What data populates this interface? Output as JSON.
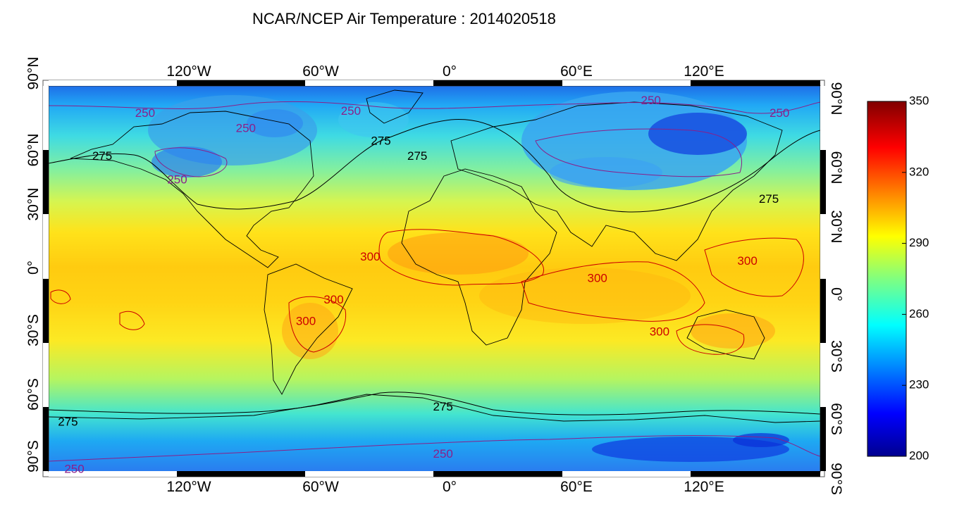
{
  "title": "NCAR/NCEP Air Temperature : 2014020518",
  "lon_labels": [
    "120°W",
    "60°W",
    "0°",
    "60°E",
    "120°E"
  ],
  "lat_labels_left": [
    "90°N",
    "60°N",
    "30°N",
    "0°",
    "30°S",
    "60°S",
    "90°S"
  ],
  "lat_labels_right": [
    "90°N",
    "60°N",
    "30°N",
    "0°",
    "30°S",
    "60°S",
    "90°S"
  ],
  "colorbar": {
    "min": 200,
    "max": 350,
    "labels": [
      "350",
      "320",
      "290",
      "260",
      "230",
      "200"
    ]
  },
  "contour_labels": [
    {
      "text": "250",
      "color": "#8a1f8a",
      "lon": -135,
      "lat": 77
    },
    {
      "text": "250",
      "color": "#8a1f8a",
      "lon": -88,
      "lat": 70
    },
    {
      "text": "250",
      "color": "#8a1f8a",
      "lon": -39,
      "lat": 78
    },
    {
      "text": "250",
      "color": "#8a1f8a",
      "lon": 101,
      "lat": 83
    },
    {
      "text": "250",
      "color": "#8a1f8a",
      "lon": 161,
      "lat": 77
    },
    {
      "text": "250",
      "color": "#8a1f8a",
      "lon": -120,
      "lat": 46
    },
    {
      "text": "275",
      "color": "#000000",
      "lon": -155,
      "lat": 57
    },
    {
      "text": "275",
      "color": "#000000",
      "lon": -25,
      "lat": 64
    },
    {
      "text": "275",
      "color": "#000000",
      "lon": -8,
      "lat": 57
    },
    {
      "text": "275",
      "color": "#000000",
      "lon": 156,
      "lat": 37
    },
    {
      "text": "300",
      "color": "#cc0000",
      "lon": -30,
      "lat": 10
    },
    {
      "text": "300",
      "color": "#cc0000",
      "lon": -47,
      "lat": -10
    },
    {
      "text": "300",
      "color": "#cc0000",
      "lon": -60,
      "lat": -20
    },
    {
      "text": "300",
      "color": "#cc0000",
      "lon": 76,
      "lat": 0
    },
    {
      "text": "300",
      "color": "#cc0000",
      "lon": 105,
      "lat": -25
    },
    {
      "text": "300",
      "color": "#cc0000",
      "lon": 146,
      "lat": 8
    },
    {
      "text": "275",
      "color": "#000000",
      "lon": 4,
      "lat": -60
    },
    {
      "text": "275",
      "color": "#000000",
      "lon": -171,
      "lat": -67
    },
    {
      "text": "250",
      "color": "#8a1f8a",
      "lon": 4,
      "lat": -82
    },
    {
      "text": "250",
      "color": "#8a1f8a",
      "lon": -168,
      "lat": -89
    }
  ]
}
